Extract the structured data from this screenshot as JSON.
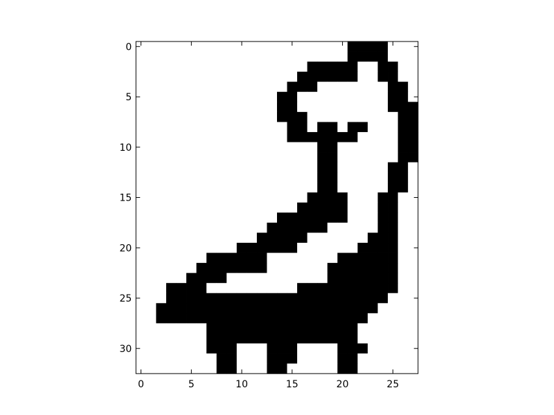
{
  "chart_data": {
    "type": "heatmap",
    "title": "",
    "xlabel": "",
    "ylabel": "",
    "colormap": {
      "0": "#ffffff",
      "1": "#000000"
    },
    "grid": false,
    "legend": "none",
    "xlim": [
      -0.5,
      27.5
    ],
    "ylim": [
      32.5,
      -0.5
    ],
    "x_ticks": [
      0,
      5,
      10,
      15,
      20,
      25
    ],
    "y_ticks": [
      0,
      5,
      10,
      15,
      20,
      25,
      30
    ],
    "x_tick_labels": [
      "0",
      "5",
      "10",
      "15",
      "20",
      "25"
    ],
    "y_tick_labels": [
      "0",
      "5",
      "10",
      "15",
      "20",
      "25",
      "30"
    ],
    "rows": [
      "0000000000000000000001111000",
      "0000000000000000000001111000",
      "0000000000000000011111001100",
      "0000000000000000111111001100",
      "0000000000000001110000000110",
      "0000000000000011000000000110",
      "0000000000000011000000000111",
      "0000000000000011100000000011",
      "0000000000000001101101100011",
      "0000000000000001111111000011",
      "0000000000000000001100000011",
      "0000000000000000001100000011",
      "0000000000000000001100000110",
      "0000000000000000001100000110",
      "0000000000000000001100000110",
      "0000000000000000011110001100",
      "0000000000000000111110001100",
      "0000000000000011111110001100",
      "0000000000000111111000001100",
      "0000000000001111100000011100",
      "0000000000111111000000111100",
      "0000000111111000000011111100",
      "0000001111111000000111111100",
      "0000011110000000000111111100",
      "0001111000000000111111111100",
      "0001111111111111111111111000",
      "0011111111111111111111110000",
      "0011111111111111111111100000",
      "0000000111111111111111000000",
      "0000000111111111111111000000",
      "0000000111000111000011100000",
      "0000000011000111000011000000",
      "0000000011000110000011000000"
    ]
  }
}
